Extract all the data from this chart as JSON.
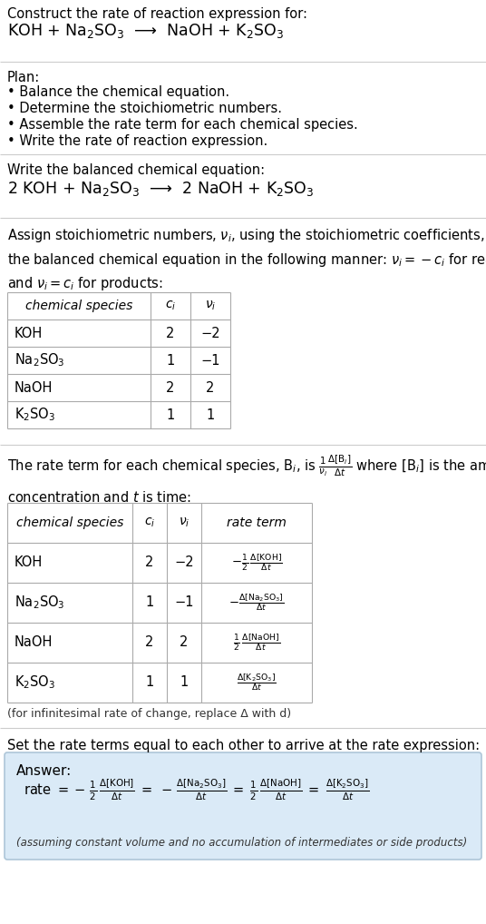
{
  "title_line1": "Construct the rate of reaction expression for:",
  "title_line2": "KOH + Na$_2$SO$_3$  ⟶  NaOH + K$_2$SO$_3$",
  "plan_header": "Plan:",
  "plan_items": [
    "• Balance the chemical equation.",
    "• Determine the stoichiometric numbers.",
    "• Assemble the rate term for each chemical species.",
    "• Write the rate of reaction expression."
  ],
  "balanced_header": "Write the balanced chemical equation:",
  "balanced_eq": "2 KOH + Na$_2$SO$_3$  ⟶  2 NaOH + K$_2$SO$_3$",
  "table1_headers": [
    "chemical species",
    "$c_i$",
    "$\\nu_i$"
  ],
  "table1_data": [
    [
      "KOH",
      "2",
      "−2"
    ],
    [
      "Na$_2$SO$_3$",
      "1",
      "−1"
    ],
    [
      "NaOH",
      "2",
      "2"
    ],
    [
      "K$_2$SO$_3$",
      "1",
      "1"
    ]
  ],
  "table2_headers": [
    "chemical species",
    "$c_i$",
    "$\\nu_i$",
    "rate term"
  ],
  "table2_data": [
    [
      "KOH",
      "2",
      "−2"
    ],
    [
      "Na$_2$SO$_3$",
      "1",
      "−1"
    ],
    [
      "NaOH",
      "2",
      "2"
    ],
    [
      "K$_2$SO$_3$",
      "1",
      "1"
    ]
  ],
  "infinitesimal_note": "(for infinitesimal rate of change, replace Δ with d)",
  "set_equal_text": "Set the rate terms equal to each other to arrive at the rate expression:",
  "answer_label": "Answer:",
  "answer_box_color": "#daeaf7",
  "answer_border_color": "#aec6d8",
  "answer_note": "(assuming constant volume and no accumulation of intermediates or side products)",
  "bg_color": "#ffffff",
  "text_color": "#000000",
  "table_border_color": "#aaaaaa",
  "separator_color": "#cccccc"
}
